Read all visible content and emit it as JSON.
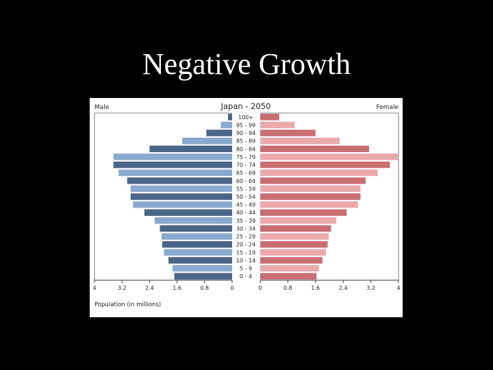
{
  "slide": {
    "title": "Negative Growth"
  },
  "chart_data": {
    "type": "bar",
    "title": "Japan - 2050",
    "left_label": "Male",
    "right_label": "Female",
    "xlabel": "Population (in millions)",
    "xlim": [
      0,
      4
    ],
    "ticks": [
      4,
      3.2,
      2.4,
      1.6,
      0.8,
      0
    ],
    "tick_labels_left": [
      "4",
      "3.2",
      "2.4",
      "1.6",
      "0.8",
      "0"
    ],
    "tick_labels_right": [
      "0",
      "0.8",
      "1.6",
      "2.4",
      "3.2",
      "4"
    ],
    "categories": [
      "100+",
      "95 - 99",
      "90 - 94",
      "85 - 89",
      "80 - 84",
      "75 - 79",
      "70 - 74",
      "65 - 69",
      "60 - 64",
      "55 - 59",
      "50 - 54",
      "45 - 49",
      "40 - 44",
      "35 - 39",
      "30 - 34",
      "25 - 29",
      "20 - 24",
      "15 - 19",
      "10 - 14",
      "5 - 9",
      "0 - 4"
    ],
    "series": [
      {
        "name": "Male",
        "side": "left",
        "values": [
          0.12,
          0.33,
          0.75,
          1.45,
          2.4,
          3.45,
          3.45,
          3.3,
          3.05,
          2.95,
          2.95,
          2.88,
          2.55,
          2.25,
          2.1,
          2.05,
          2.03,
          1.98,
          1.85,
          1.73,
          1.68
        ],
        "colors": [
          "#4a6688",
          "#89a9cf"
        ]
      },
      {
        "name": "Female",
        "side": "right",
        "values": [
          0.55,
          1.0,
          1.6,
          2.3,
          3.15,
          3.98,
          3.75,
          3.4,
          3.05,
          2.9,
          2.9,
          2.83,
          2.5,
          2.2,
          2.05,
          1.98,
          1.95,
          1.9,
          1.8,
          1.7,
          1.63
        ],
        "colors": [
          "#c96f73",
          "#eaaaac"
        ]
      }
    ]
  }
}
